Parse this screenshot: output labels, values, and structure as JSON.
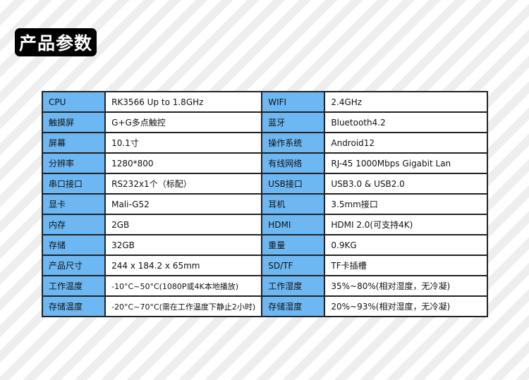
{
  "title": "产品参数",
  "colors": {
    "label_bg": "#6db7f2"
  },
  "rows": [
    {
      "k1": "CPU",
      "v1": "RK3566  Up to 1.8GHz",
      "k2": "WIFI",
      "v2": "2.4GHz"
    },
    {
      "k1": "触摸屏",
      "v1": "G+G多点触控",
      "k2": "蓝牙",
      "v2": "Bluetooth4.2"
    },
    {
      "k1": "屏幕",
      "v1": "10.1寸",
      "k2": "操作系统",
      "v2": "Android12"
    },
    {
      "k1": "分辨率",
      "v1": "1280*800",
      "k2": "有线网络",
      "v2": "RJ-45 1000Mbps Gigabit Lan"
    },
    {
      "k1": "串口接口",
      "v1": "RS232x1个（标配）",
      "k2": "USB接口",
      "v2": "USB3.0 & USB2.0"
    },
    {
      "k1": "显卡",
      "v1": "Mali-G52",
      "k2": "耳机",
      "v2": "3.5mm接口"
    },
    {
      "k1": "内存",
      "v1": "2GB",
      "k2": "HDMI",
      "v2": "HDMI 2.0(可支持4K)"
    },
    {
      "k1": "存储",
      "v1": "32GB",
      "k2": "重量",
      "v2": "0.9KG"
    },
    {
      "k1": "产品尺寸",
      "v1": "244 x 184.2 x 65mm",
      "k2": "SD/TF",
      "v2": "TF卡插槽"
    },
    {
      "k1": "工作温度",
      "v1": "-10°C~50°C(1080P或4K本地播放)",
      "k2": "工作湿度",
      "v2": "35%~80%(相对湿度，无冷凝)"
    },
    {
      "k1": "存储温度",
      "v1": "-20°C~70°C(需在工作温度下静止2小时)",
      "k2": "存储湿度",
      "v2": "20%~93%(相对湿度，无冷凝)"
    }
  ]
}
